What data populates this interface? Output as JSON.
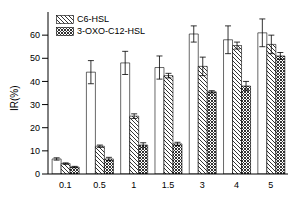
{
  "chart_data": {
    "type": "bar",
    "y_label": "IR(%)",
    "categories": [
      "0.1",
      "0.5",
      "1",
      "1.5",
      "3",
      "4",
      "5"
    ],
    "ylim": [
      0,
      70
    ],
    "yticks": [
      0,
      10,
      20,
      30,
      40,
      50,
      60
    ],
    "legend": "upper left",
    "grid": false,
    "series": [
      {
        "color": "#ffffff",
        "values": [
          6.5,
          44,
          48,
          46,
          60.5,
          58,
          61
        ],
        "errors": [
          0.5,
          5,
          5,
          5,
          3.5,
          6,
          6
        ]
      },
      {
        "name": "C6-HSL",
        "color": "#000000",
        "values": [
          4.5,
          12,
          25,
          42.5,
          46.5,
          55.5,
          56
        ],
        "errors": [
          0.3,
          0.5,
          1,
          1,
          4,
          1.5,
          4
        ]
      },
      {
        "name": "3-OXO-C12-HSL",
        "color": "#333333",
        "values": [
          3,
          6.5,
          12.5,
          13,
          35.5,
          38,
          51
        ],
        "errors": [
          0.3,
          0.7,
          1,
          0.7,
          0.5,
          2,
          1.5
        ]
      }
    ]
  }
}
